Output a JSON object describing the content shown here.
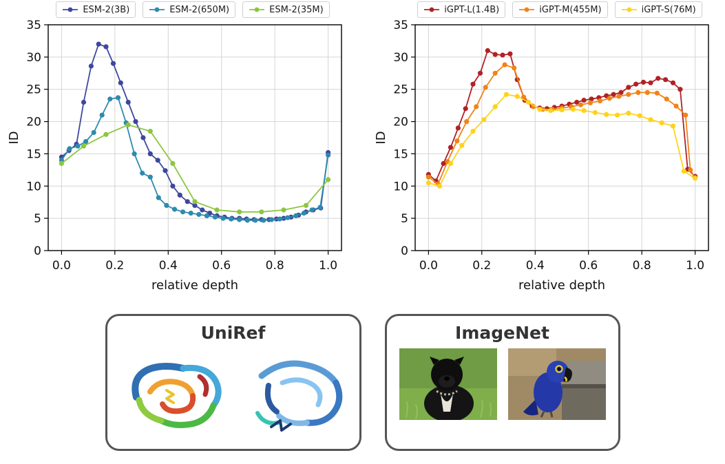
{
  "chart_data": [
    {
      "id": "esm2",
      "type": "line",
      "title": "",
      "xlabel": "relative depth",
      "ylabel": "ID",
      "xlim": [
        -0.05,
        1.05
      ],
      "ylim": [
        0,
        35
      ],
      "xticks": [
        0.0,
        0.2,
        0.4,
        0.6,
        0.8,
        1.0
      ],
      "xtick_labels": [
        "0.0",
        "0.2",
        "0.4",
        "0.6",
        "0.8",
        "1.0"
      ],
      "yticks": [
        0,
        5,
        10,
        15,
        20,
        25,
        30,
        35
      ],
      "grid": true,
      "legend_position": "top",
      "series": [
        {
          "name": "ESM-2(3B)",
          "color": "#3e479e",
          "points": [
            [
              0.0,
              14.5
            ],
            [
              0.028,
              15.5
            ],
            [
              0.056,
              16.5
            ],
            [
              0.083,
              23.0
            ],
            [
              0.111,
              28.6
            ],
            [
              0.139,
              32.0
            ],
            [
              0.167,
              31.6
            ],
            [
              0.194,
              29.0
            ],
            [
              0.222,
              26.0
            ],
            [
              0.25,
              23.0
            ],
            [
              0.278,
              20.0
            ],
            [
              0.306,
              17.5
            ],
            [
              0.333,
              15.0
            ],
            [
              0.361,
              14.0
            ],
            [
              0.389,
              12.4
            ],
            [
              0.417,
              10.0
            ],
            [
              0.444,
              8.6
            ],
            [
              0.472,
              7.6
            ],
            [
              0.5,
              7.0
            ],
            [
              0.528,
              6.3
            ],
            [
              0.556,
              5.8
            ],
            [
              0.583,
              5.4
            ],
            [
              0.611,
              5.2
            ],
            [
              0.639,
              5.0
            ],
            [
              0.667,
              5.0
            ],
            [
              0.694,
              4.9
            ],
            [
              0.722,
              4.8
            ],
            [
              0.75,
              4.8
            ],
            [
              0.778,
              4.8
            ],
            [
              0.806,
              4.9
            ],
            [
              0.833,
              5.0
            ],
            [
              0.861,
              5.2
            ],
            [
              0.889,
              5.5
            ],
            [
              0.917,
              6.0
            ],
            [
              0.944,
              6.3
            ],
            [
              0.972,
              6.6
            ],
            [
              1.0,
              15.2
            ]
          ]
        },
        {
          "name": "ESM-2(650M)",
          "color": "#2e8aae",
          "points": [
            [
              0.0,
              14.0
            ],
            [
              0.03,
              15.8
            ],
            [
              0.061,
              16.2
            ],
            [
              0.091,
              16.9
            ],
            [
              0.121,
              18.3
            ],
            [
              0.152,
              21.0
            ],
            [
              0.182,
              23.5
            ],
            [
              0.212,
              23.7
            ],
            [
              0.242,
              19.8
            ],
            [
              0.273,
              15.0
            ],
            [
              0.303,
              12.0
            ],
            [
              0.333,
              11.4
            ],
            [
              0.364,
              8.2
            ],
            [
              0.394,
              7.0
            ],
            [
              0.424,
              6.4
            ],
            [
              0.455,
              6.0
            ],
            [
              0.485,
              5.8
            ],
            [
              0.515,
              5.6
            ],
            [
              0.545,
              5.4
            ],
            [
              0.576,
              5.2
            ],
            [
              0.606,
              5.0
            ],
            [
              0.636,
              4.9
            ],
            [
              0.667,
              4.8
            ],
            [
              0.697,
              4.7
            ],
            [
              0.727,
              4.7
            ],
            [
              0.758,
              4.7
            ],
            [
              0.788,
              4.8
            ],
            [
              0.818,
              4.9
            ],
            [
              0.848,
              5.1
            ],
            [
              0.879,
              5.4
            ],
            [
              0.909,
              5.8
            ],
            [
              0.939,
              6.3
            ],
            [
              0.97,
              6.7
            ],
            [
              1.0,
              14.8
            ]
          ]
        },
        {
          "name": "ESM-2(35M)",
          "color": "#8cc63f",
          "points": [
            [
              0.0,
              13.5
            ],
            [
              0.083,
              16.2
            ],
            [
              0.167,
              18.0
            ],
            [
              0.25,
              19.5
            ],
            [
              0.333,
              18.5
            ],
            [
              0.417,
              13.5
            ],
            [
              0.5,
              7.6
            ],
            [
              0.583,
              6.3
            ],
            [
              0.667,
              6.0
            ],
            [
              0.75,
              6.0
            ],
            [
              0.833,
              6.3
            ],
            [
              0.917,
              7.0
            ],
            [
              1.0,
              11.0
            ]
          ]
        }
      ]
    },
    {
      "id": "igpt",
      "type": "line",
      "title": "",
      "xlabel": "relative depth",
      "ylabel": "ID",
      "xlim": [
        -0.05,
        1.05
      ],
      "ylim": [
        0,
        35
      ],
      "xticks": [
        0.0,
        0.2,
        0.4,
        0.6,
        0.8,
        1.0
      ],
      "xtick_labels": [
        "0.0",
        "0.2",
        "0.4",
        "0.6",
        "0.8",
        "1.0"
      ],
      "yticks": [
        0,
        5,
        10,
        15,
        20,
        25,
        30,
        35
      ],
      "grid": true,
      "legend_position": "top",
      "series": [
        {
          "name": "iGPT-L(1.4B)",
          "color": "#b02225",
          "points": [
            [
              0.0,
              11.8
            ],
            [
              0.028,
              10.8
            ],
            [
              0.056,
              13.5
            ],
            [
              0.083,
              16.0
            ],
            [
              0.111,
              19.0
            ],
            [
              0.139,
              22.0
            ],
            [
              0.167,
              25.8
            ],
            [
              0.194,
              27.5
            ],
            [
              0.222,
              31.0
            ],
            [
              0.25,
              30.4
            ],
            [
              0.278,
              30.3
            ],
            [
              0.306,
              30.5
            ],
            [
              0.333,
              26.5
            ],
            [
              0.361,
              23.3
            ],
            [
              0.389,
              22.4
            ],
            [
              0.417,
              22.1
            ],
            [
              0.444,
              22.0
            ],
            [
              0.472,
              22.2
            ],
            [
              0.5,
              22.4
            ],
            [
              0.528,
              22.7
            ],
            [
              0.556,
              23.0
            ],
            [
              0.583,
              23.3
            ],
            [
              0.611,
              23.5
            ],
            [
              0.639,
              23.7
            ],
            [
              0.667,
              24.0
            ],
            [
              0.694,
              24.2
            ],
            [
              0.722,
              24.5
            ],
            [
              0.75,
              25.3
            ],
            [
              0.778,
              25.8
            ],
            [
              0.806,
              26.1
            ],
            [
              0.833,
              26.0
            ],
            [
              0.861,
              26.7
            ],
            [
              0.889,
              26.5
            ],
            [
              0.917,
              26.0
            ],
            [
              0.944,
              25.0
            ],
            [
              0.972,
              12.6
            ],
            [
              1.0,
              11.5
            ]
          ]
        },
        {
          "name": "iGPT-M(455M)",
          "color": "#ef8418",
          "points": [
            [
              0.0,
              11.4
            ],
            [
              0.036,
              10.3
            ],
            [
              0.071,
              13.8
            ],
            [
              0.107,
              17.0
            ],
            [
              0.143,
              20.0
            ],
            [
              0.179,
              22.3
            ],
            [
              0.214,
              25.3
            ],
            [
              0.25,
              27.5
            ],
            [
              0.286,
              28.8
            ],
            [
              0.321,
              28.3
            ],
            [
              0.357,
              23.8
            ],
            [
              0.393,
              22.3
            ],
            [
              0.429,
              21.9
            ],
            [
              0.464,
              21.9
            ],
            [
              0.5,
              22.1
            ],
            [
              0.536,
              22.3
            ],
            [
              0.571,
              22.6
            ],
            [
              0.607,
              22.9
            ],
            [
              0.643,
              23.2
            ],
            [
              0.679,
              23.6
            ],
            [
              0.714,
              23.9
            ],
            [
              0.75,
              24.2
            ],
            [
              0.786,
              24.5
            ],
            [
              0.821,
              24.5
            ],
            [
              0.857,
              24.4
            ],
            [
              0.893,
              23.5
            ],
            [
              0.929,
              22.4
            ],
            [
              0.964,
              21.0
            ],
            [
              0.982,
              12.5
            ],
            [
              1.0,
              11.3
            ]
          ]
        },
        {
          "name": "iGPT-S(76M)",
          "color": "#fdd31c",
          "points": [
            [
              0.0,
              10.5
            ],
            [
              0.042,
              10.0
            ],
            [
              0.083,
              13.5
            ],
            [
              0.125,
              16.3
            ],
            [
              0.167,
              18.5
            ],
            [
              0.208,
              20.3
            ],
            [
              0.25,
              22.3
            ],
            [
              0.292,
              24.2
            ],
            [
              0.333,
              23.9
            ],
            [
              0.375,
              23.0
            ],
            [
              0.417,
              21.9
            ],
            [
              0.458,
              21.7
            ],
            [
              0.5,
              21.8
            ],
            [
              0.542,
              21.9
            ],
            [
              0.583,
              21.7
            ],
            [
              0.625,
              21.4
            ],
            [
              0.667,
              21.1
            ],
            [
              0.708,
              21.0
            ],
            [
              0.75,
              21.3
            ],
            [
              0.792,
              20.9
            ],
            [
              0.833,
              20.3
            ],
            [
              0.875,
              19.8
            ],
            [
              0.917,
              19.3
            ],
            [
              0.958,
              12.3
            ],
            [
              1.0,
              11.2
            ]
          ]
        }
      ]
    }
  ],
  "panels": [
    {
      "title": "UniRef",
      "images": [
        "protein-ribbon-multicolor",
        "protein-ribbon-blue"
      ]
    },
    {
      "title": "ImageNet",
      "images": [
        "black-dog-photo",
        "blue-parrot-photo"
      ]
    }
  ]
}
